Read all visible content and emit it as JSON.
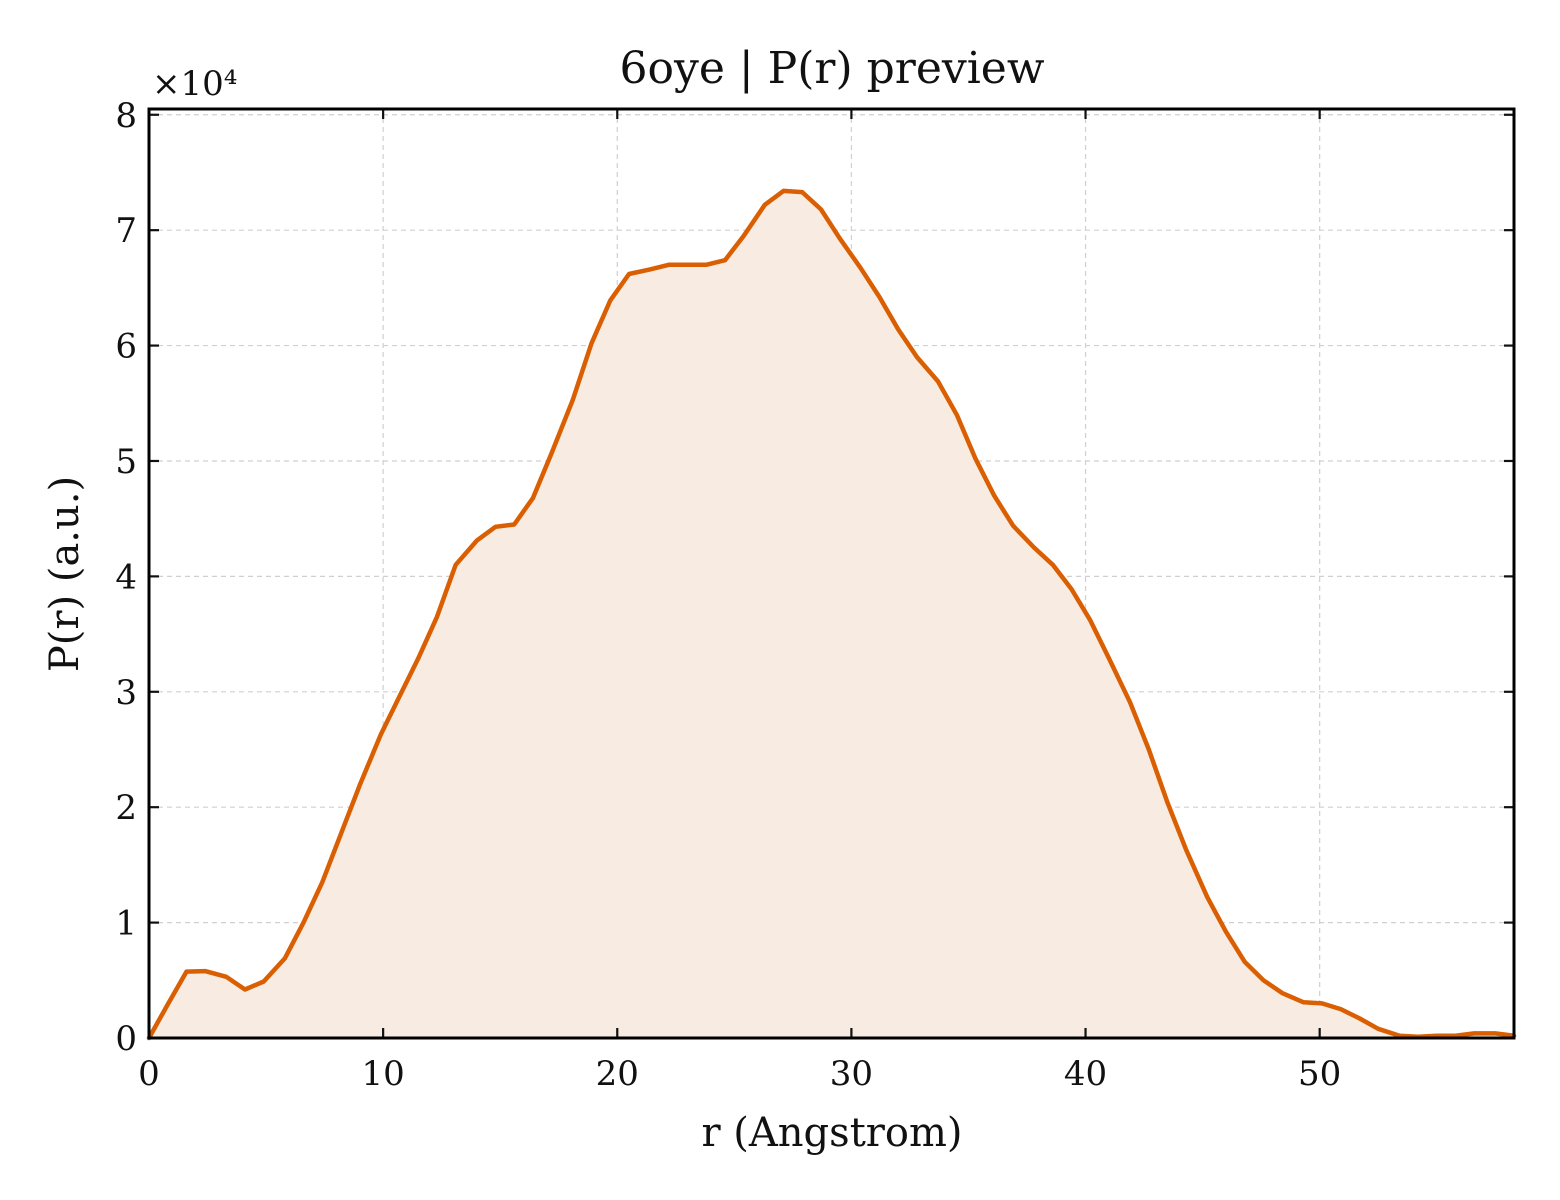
{
  "chart_data": {
    "type": "area",
    "title": "6oye | P(r) preview",
    "xlabel": "r (Angstrom)",
    "ylabel": "P(r) (a.u.)",
    "y_multiplier_label": "×10⁴",
    "y_multiplier": 10000,
    "xlim": [
      0,
      58.3
    ],
    "ylim": [
      0,
      80500
    ],
    "xticks": [
      0,
      10,
      20,
      30,
      40,
      50
    ],
    "yticks": [
      0,
      1,
      2,
      3,
      4,
      5,
      6,
      7,
      8
    ],
    "grid": true,
    "line_color": "#d95f02",
    "fill_color": "#f8ebe1",
    "series": [
      {
        "x": [
          0.0,
          0.8,
          1.6,
          2.4,
          3.3,
          4.1,
          4.9,
          5.8,
          6.6,
          7.4,
          8.2,
          9.0,
          9.9,
          10.7,
          11.5,
          12.3,
          13.1,
          14.0,
          14.8,
          15.6,
          16.4,
          17.2,
          18.1,
          18.9,
          19.7,
          20.5,
          21.4,
          22.2,
          23.0,
          23.8,
          24.6,
          25.4,
          26.3,
          27.1,
          27.9,
          28.7,
          29.5,
          30.4,
          31.2,
          32.0,
          32.8,
          33.7,
          34.5,
          35.3,
          36.1,
          36.9,
          37.8,
          38.6,
          39.4,
          40.2,
          41.0,
          41.9,
          42.7,
          43.5,
          44.3,
          45.2,
          46.0,
          46.8,
          47.6,
          48.4,
          49.3,
          50.1,
          50.9,
          51.7,
          52.5,
          53.4,
          54.2,
          55.0,
          55.8,
          56.6,
          57.5,
          58.3
        ],
        "values": [
          0,
          2900,
          5750,
          5800,
          5300,
          4200,
          4900,
          6900,
          10000,
          13500,
          17700,
          21900,
          26300,
          29600,
          32900,
          36500,
          41000,
          43100,
          44300,
          44500,
          46800,
          50700,
          55300,
          60200,
          63900,
          66200,
          66600,
          67000,
          67000,
          67000,
          67400,
          69500,
          72200,
          73400,
          73300,
          71800,
          69300,
          66700,
          64200,
          61400,
          59000,
          56900,
          54000,
          50200,
          47000,
          44400,
          42500,
          41000,
          38900,
          36200,
          32900,
          29100,
          25000,
          20400,
          16300,
          12200,
          9200,
          6600,
          5000,
          3900,
          3100,
          3000,
          2500,
          1700,
          800,
          200,
          100,
          200,
          200,
          400,
          400,
          200
        ]
      }
    ]
  }
}
